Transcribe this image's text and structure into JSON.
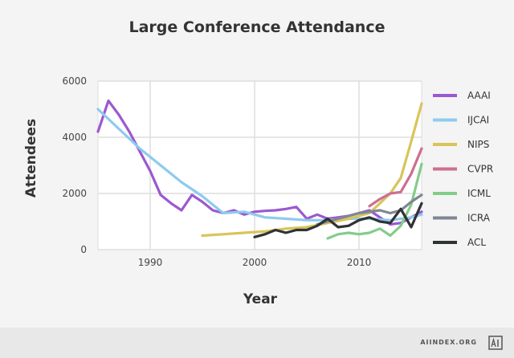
{
  "chart_data": {
    "type": "line",
    "title": "Large Conference Attendance",
    "xlabel": "Year",
    "ylabel": "Attendees",
    "xlim": [
      1985,
      2016
    ],
    "ylim": [
      0,
      6000
    ],
    "x_ticks": [
      1990,
      2000,
      2010
    ],
    "y_ticks": [
      0,
      2000,
      4000,
      6000
    ],
    "x_tick_labels": [
      "1990",
      "2000",
      "2010"
    ],
    "y_tick_labels": [
      "0",
      "2000",
      "4000",
      "6000"
    ],
    "grid": true,
    "legend_position": "right",
    "series": [
      {
        "name": "AAAI",
        "color": "#9b59d0",
        "x": [
          1985,
          1986,
          1987,
          1988,
          1989,
          1990,
          1991,
          1992,
          1993,
          1994,
          1995,
          1996,
          1997,
          1998,
          1999,
          2000,
          2001,
          2002,
          2003,
          2004,
          2005,
          2006,
          2007,
          2008,
          2009,
          2010,
          2011,
          2012,
          2013,
          2014,
          2015,
          2016
        ],
        "y": [
          4200,
          5300,
          4800,
          4200,
          3500,
          2800,
          1950,
          1650,
          1400,
          1950,
          1700,
          1400,
          1300,
          1400,
          1250,
          1350,
          1380,
          1400,
          1450,
          1520,
          1100,
          1250,
          1100,
          1150,
          1200,
          1300,
          1400,
          1150,
          900,
          950,
          1150,
          1350
        ]
      },
      {
        "name": "IJCAI",
        "color": "#8ecbee",
        "x": [
          1985,
          1987,
          1989,
          1991,
          1993,
          1995,
          1997,
          1999,
          2001,
          2003,
          2005,
          2007,
          2009,
          2011,
          2013,
          2015,
          2016
        ],
        "y": [
          5000,
          4300,
          3600,
          3000,
          2400,
          1900,
          1300,
          1350,
          1150,
          1100,
          1050,
          1050,
          1100,
          1100,
          1050,
          1150,
          1250
        ]
      },
      {
        "name": "NIPS",
        "color": "#d9c45a",
        "x": [
          1995,
          1997,
          1999,
          2001,
          2003,
          2005,
          2007,
          2009,
          2010,
          2011,
          2012,
          2013,
          2014,
          2015,
          2016
        ],
        "y": [
          500,
          550,
          600,
          650,
          750,
          800,
          950,
          1100,
          1200,
          1300,
          1650,
          2000,
          2550,
          3850,
          5200
        ]
      },
      {
        "name": "CVPR",
        "color": "#cc6f91",
        "x": [
          2011,
          2012,
          2013,
          2014,
          2015,
          2016
        ],
        "y": [
          1550,
          1800,
          2000,
          2050,
          2700,
          3600
        ]
      },
      {
        "name": "ICML",
        "color": "#83cd8a",
        "x": [
          2007,
          2008,
          2009,
          2010,
          2011,
          2012,
          2013,
          2014,
          2015,
          2016
        ],
        "y": [
          400,
          550,
          600,
          550,
          600,
          750,
          500,
          850,
          1600,
          3050
        ]
      },
      {
        "name": "ICRA",
        "color": "#7f8794",
        "x": [
          2006,
          2007,
          2008,
          2009,
          2010,
          2011,
          2012,
          2013,
          2014,
          2015,
          2016
        ],
        "y": [
          900,
          1000,
          1100,
          1200,
          1300,
          1350,
          1400,
          1300,
          1400,
          1700,
          1950
        ]
      },
      {
        "name": "ACL",
        "color": "#2f3335",
        "x": [
          2000,
          2001,
          2002,
          2003,
          2004,
          2005,
          2006,
          2007,
          2008,
          2009,
          2010,
          2011,
          2012,
          2013,
          2014,
          2015,
          2016
        ],
        "y": [
          450,
          550,
          700,
          600,
          700,
          700,
          850,
          1100,
          800,
          850,
          1050,
          1150,
          1000,
          950,
          1450,
          800,
          1650
        ]
      }
    ]
  },
  "footer": {
    "source": "AIINDEX.ORG"
  }
}
